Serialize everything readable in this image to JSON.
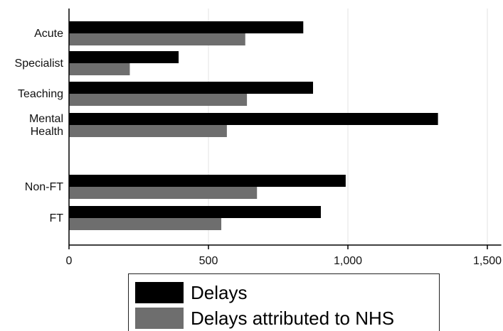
{
  "chart_data": {
    "type": "bar",
    "orientation": "horizontal",
    "groups": [
      {
        "category_lines": [
          "Acute"
        ],
        "values": [
          840,
          632
        ]
      },
      {
        "category_lines": [
          "Specialist"
        ],
        "values": [
          393,
          218
        ]
      },
      {
        "category_lines": [
          "Teaching"
        ],
        "values": [
          875,
          638
        ]
      },
      {
        "category_lines": [
          "Mental",
          "Health"
        ],
        "values": [
          1323,
          566
        ]
      },
      {
        "category_lines": [
          "Non-FT"
        ],
        "values": [
          992,
          674
        ]
      },
      {
        "category_lines": [
          "FT"
        ],
        "values": [
          903,
          546
        ]
      }
    ],
    "series": [
      {
        "name": "Delays",
        "color": "#000000"
      },
      {
        "name": "Delays attributed to NHS",
        "color": "#6e6e6e"
      }
    ],
    "xlim": [
      0,
      1550
    ],
    "x_ticks": [
      0,
      500,
      1000,
      1500
    ],
    "x_tick_labels": [
      "0",
      "500",
      "1,000",
      "1,500"
    ],
    "grid": true,
    "legend_position": "bottom"
  },
  "legend": {
    "items": [
      {
        "label": "Delays",
        "color": "#000000"
      },
      {
        "label": "Delays attributed to NHS",
        "color": "#6e6e6e"
      }
    ]
  }
}
